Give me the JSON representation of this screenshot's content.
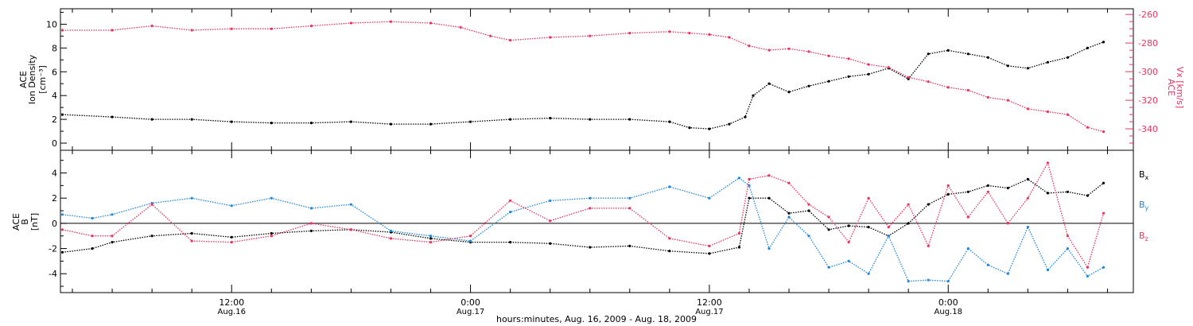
{
  "colors": {
    "black_series": "#000000",
    "pink_series": "#e8335f",
    "blue_series": "#1f86d9",
    "axes": "#000000"
  },
  "bottom_axis": {
    "ticks": [
      {
        "time": "12:00",
        "date": "Aug.16"
      },
      {
        "time": "0:00",
        "date": "Aug.17"
      },
      {
        "time": "12:00",
        "date": "Aug.17"
      },
      {
        "time": "0:00",
        "date": "Aug.18"
      }
    ],
    "xlabel": "hours:minutes, Aug. 16, 2009 - Aug. 18, 2009"
  },
  "chart_data": [
    {
      "type": "scatter",
      "panel": "top",
      "x_units": "hours since Aug. 16, 2009 0:00",
      "xlim": [
        3.4,
        57.3
      ],
      "ylabel_left": [
        "ACE",
        "Ion Density",
        "[cm⁻³]"
      ],
      "ylabel_right": [
        "ACE",
        "Vx [km/s]"
      ],
      "y_left_ticks": [
        "0",
        "2",
        "4",
        "6",
        "8",
        "10"
      ],
      "y_left_lim": [
        -0.6,
        11.3
      ],
      "y_right_ticks": [
        "-260",
        "-280",
        "-300",
        "-320",
        "-340"
      ],
      "y_right_lim": [
        -355,
        -256
      ],
      "series": [
        {
          "axis": "left",
          "color": "#000000",
          "x": [
            3.5,
            6,
            8,
            10,
            12,
            14,
            16,
            18,
            20,
            22,
            24,
            26,
            28,
            30,
            32,
            34,
            35,
            36,
            37,
            37.8,
            38.2,
            39,
            40,
            41,
            42,
            43,
            44,
            45,
            46,
            47,
            48,
            49,
            50,
            51,
            52,
            53,
            54,
            55,
            55.8
          ],
          "y": [
            2.4,
            2.2,
            2.0,
            2.0,
            1.8,
            1.7,
            1.7,
            1.8,
            1.6,
            1.6,
            1.8,
            2.0,
            2.1,
            2.0,
            2.0,
            1.8,
            1.3,
            1.2,
            1.6,
            2.2,
            4.0,
            5.0,
            4.3,
            4.8,
            5.2,
            5.6,
            5.8,
            6.3,
            5.4,
            7.5,
            7.8,
            7.5,
            7.2,
            6.5,
            6.3,
            6.8,
            7.2,
            8.0,
            8.5
          ]
        },
        {
          "axis": "right",
          "color": "#e8335f",
          "x": [
            3.5,
            6,
            8,
            10,
            12,
            14,
            16,
            18,
            20,
            22,
            23.5,
            25,
            26,
            28,
            30,
            32,
            34,
            35,
            36,
            37,
            38,
            39,
            40,
            41,
            42,
            43,
            44,
            45,
            46,
            47,
            48,
            49,
            50,
            51,
            52,
            53,
            54,
            55,
            55.8
          ],
          "y": [
            -271,
            -271,
            -268,
            -271,
            -270,
            -270,
            -268,
            -266,
            -265,
            -266,
            -269,
            -275,
            -278,
            -276,
            -275,
            -273,
            -272,
            -273,
            -274,
            -276,
            -282,
            -285,
            -284,
            -286,
            -289,
            -291,
            -295,
            -297,
            -304,
            -307,
            -311,
            -313,
            -318,
            -320,
            -326,
            -328,
            -330,
            -339,
            -342
          ]
        }
      ]
    },
    {
      "type": "scatter",
      "panel": "bottom",
      "x_units": "hours since Aug. 16, 2009 0:00",
      "xlim": [
        3.4,
        57.3
      ],
      "ylabel": [
        "ACE",
        "B",
        "[nT]"
      ],
      "y_ticks": [
        "-4",
        "-2",
        "0",
        "2",
        "4"
      ],
      "ylim": [
        -5.5,
        5.8
      ],
      "zero_line": true,
      "series": [
        {
          "name": "Bx",
          "color": "#000000",
          "x": [
            3.5,
            5,
            6,
            8,
            10,
            12,
            14,
            16,
            18,
            20,
            22,
            24,
            26,
            28,
            30,
            32,
            34,
            36,
            37.5,
            38,
            39,
            40,
            41,
            42,
            43,
            44,
            45,
            46,
            47,
            48,
            49,
            50,
            51,
            52,
            53,
            54,
            55,
            55.8
          ],
          "y": [
            -2.3,
            -2.0,
            -1.5,
            -1.0,
            -0.8,
            -1.1,
            -0.8,
            -0.6,
            -0.5,
            -0.7,
            -1.2,
            -1.5,
            -1.5,
            -1.6,
            -1.9,
            -1.8,
            -2.2,
            -2.4,
            -1.9,
            2.0,
            2.0,
            0.8,
            1.0,
            -0.5,
            -0.2,
            -0.3,
            -1.0,
            0.0,
            1.5,
            2.3,
            2.5,
            3.0,
            2.8,
            3.5,
            2.4,
            2.5,
            2.2,
            3.2
          ]
        },
        {
          "name": "By",
          "color": "#1f86d9",
          "x": [
            3.5,
            5,
            6,
            8,
            10,
            12,
            14,
            16,
            18,
            20,
            22,
            24,
            26,
            28,
            30,
            32,
            34,
            36,
            37.5,
            38,
            39,
            40,
            41,
            42,
            43,
            44,
            45,
            46,
            47,
            48,
            49,
            50,
            51,
            52,
            53,
            54,
            55,
            55.8
          ],
          "y": [
            0.7,
            0.4,
            0.7,
            1.6,
            2.0,
            1.4,
            2.0,
            1.2,
            1.5,
            -0.6,
            -1.0,
            -1.4,
            0.9,
            1.8,
            2.0,
            2.0,
            2.9,
            2.0,
            3.6,
            3.0,
            -2.0,
            0.5,
            -1.0,
            -3.5,
            -3.0,
            -4.0,
            -1.0,
            -4.6,
            -4.5,
            -4.6,
            -2.0,
            -3.3,
            -4.0,
            -0.3,
            -3.7,
            -2.0,
            -4.2,
            -3.5
          ]
        },
        {
          "name": "Bz",
          "color": "#e8335f",
          "x": [
            3.5,
            5,
            6,
            8,
            10,
            12,
            14,
            16,
            18,
            20,
            22,
            24,
            26,
            28,
            30,
            32,
            34,
            36,
            37.5,
            38,
            39,
            40,
            41,
            42,
            43,
            44,
            45,
            46,
            47,
            48,
            49,
            50,
            51,
            52,
            53,
            54,
            55,
            55.8
          ],
          "y": [
            -0.5,
            -1.0,
            -1.0,
            1.5,
            -1.4,
            -1.5,
            -1.0,
            0.0,
            -0.5,
            -1.2,
            -1.5,
            -1.0,
            1.8,
            0.2,
            1.2,
            1.2,
            -1.2,
            -1.8,
            -0.8,
            3.5,
            3.8,
            3.2,
            1.5,
            0.5,
            -1.5,
            2.0,
            -0.3,
            1.5,
            -1.8,
            3.0,
            0.5,
            2.5,
            0.0,
            2.0,
            4.8,
            -1.0,
            -3.5,
            0.8
          ]
        }
      ],
      "legend": [
        {
          "label": "Bx",
          "base": "B",
          "sub": "x",
          "color": "#000000"
        },
        {
          "label": "By",
          "base": "B",
          "sub": "y",
          "color": "#1f86d9"
        },
        {
          "label": "Bz",
          "base": "B",
          "sub": "z",
          "color": "#e8335f"
        }
      ]
    }
  ]
}
